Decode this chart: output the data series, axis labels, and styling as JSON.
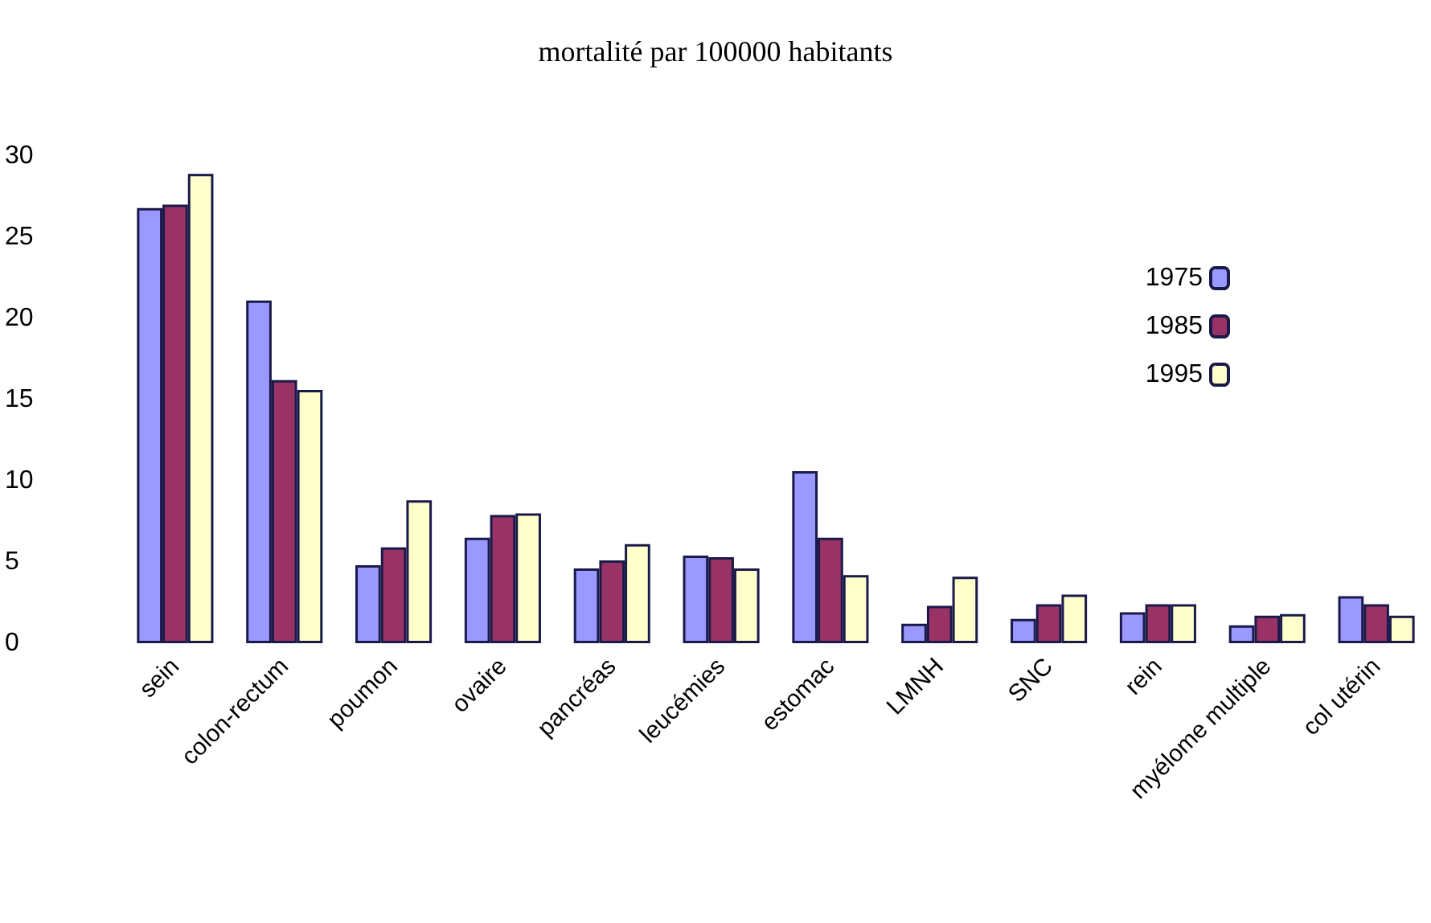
{
  "chart_data": {
    "type": "bar",
    "title": "mortalité par 100000 habitants",
    "categories": [
      "sein",
      "colon-rectum",
      "poumon",
      "ovaire",
      "pancréas",
      "leucémies",
      "estomac",
      "LMNH",
      "SNC",
      "rein",
      "myélome multiple",
      "col utérin"
    ],
    "series": [
      {
        "name": "1975",
        "color": "#9999ff",
        "values": [
          26.8,
          21.1,
          4.8,
          6.5,
          4.6,
          5.4,
          10.6,
          1.2,
          1.5,
          1.9,
          1.1,
          2.9
        ]
      },
      {
        "name": "1985",
        "color": "#993366",
        "values": [
          27.0,
          16.2,
          5.9,
          7.9,
          5.1,
          5.3,
          6.5,
          2.3,
          2.4,
          2.4,
          1.7,
          2.4
        ]
      },
      {
        "name": "1995",
        "color": "#ffffcc",
        "values": [
          28.9,
          15.6,
          8.8,
          8.0,
          6.1,
          4.6,
          4.2,
          4.1,
          3.0,
          2.4,
          1.8,
          1.7
        ]
      }
    ],
    "ylim": [
      0,
      30
    ],
    "yticks": [
      0,
      5,
      10,
      15,
      20,
      25,
      30
    ],
    "grid": false,
    "legend": "right"
  }
}
